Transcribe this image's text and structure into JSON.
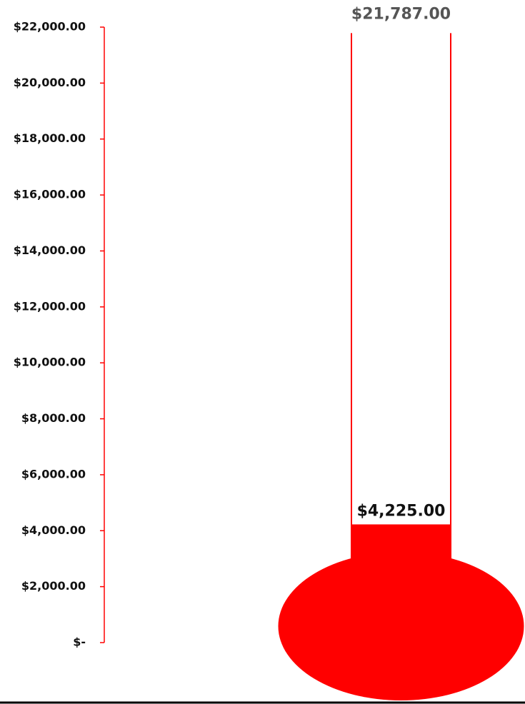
{
  "chart_data": {
    "type": "thermometer",
    "values": [
      4225
    ],
    "value_labels": [
      "$4,225.00"
    ],
    "target": 21787,
    "target_label": "$21,787.00",
    "color": "#ff0000",
    "ylim": [
      0,
      22000
    ],
    "yticks": [
      {
        "value": 0,
        "label": "$-"
      },
      {
        "value": 2000,
        "label": "$2,000.00"
      },
      {
        "value": 4000,
        "label": "$4,000.00"
      },
      {
        "value": 6000,
        "label": "$6,000.00"
      },
      {
        "value": 8000,
        "label": "$8,000.00"
      },
      {
        "value": 10000,
        "label": "$10,000.00"
      },
      {
        "value": 12000,
        "label": "$12,000.00"
      },
      {
        "value": 14000,
        "label": "$14,000.00"
      },
      {
        "value": 16000,
        "label": "$16,000.00"
      },
      {
        "value": 18000,
        "label": "$18,000.00"
      },
      {
        "value": 20000,
        "label": "$20,000.00"
      },
      {
        "value": 22000,
        "label": "$22,000.00"
      }
    ]
  }
}
